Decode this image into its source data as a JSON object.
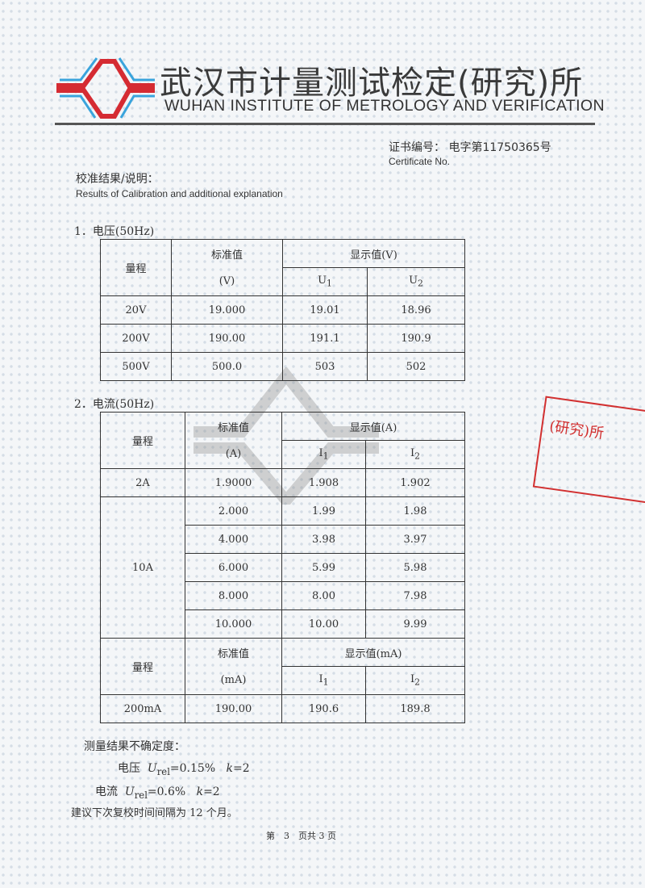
{
  "header": {
    "title_cn": "武汉市计量测试检定(研究)所",
    "title_en": "WUHAN INSTITUTE OF METROLOGY AND VERIFICATION",
    "logo_colors": {
      "red": "#d52b32",
      "blue": "#3aa4dc"
    }
  },
  "certificate": {
    "label_cn": "证书编号：",
    "number": "电字第11750365号",
    "label_en": "Certificate No."
  },
  "results": {
    "heading_cn": "校准结果/说明：",
    "heading_en": "Results of Calibration and additional explanation"
  },
  "voltage": {
    "title": "1．电压(50Hz)",
    "h_range": "量程",
    "h_std": "标准值",
    "h_std_unit": "(V)",
    "h_disp": "显示值(V)",
    "h_u1": "U",
    "h_u1_sub": "1",
    "h_u2": "U",
    "h_u2_sub": "2",
    "rows": [
      [
        "20V",
        "19.000",
        "19.01",
        "18.96"
      ],
      [
        "200V",
        "190.00",
        "191.1",
        "190.9"
      ],
      [
        "500V",
        "500.0",
        "503",
        "502"
      ]
    ]
  },
  "current": {
    "title": "2．电流(50Hz)",
    "h_range": "量程",
    "h_std": "标准值",
    "h_std_unit": "(A)",
    "h_disp": "显示值(A)",
    "h_i": "I",
    "s1": "1",
    "s2": "2",
    "row_2a": [
      "2A",
      "1.9000",
      "1.908",
      "1.902"
    ],
    "range_10a": "10A",
    "rows_10a": [
      [
        "2.000",
        "1.99",
        "1.98"
      ],
      [
        "4.000",
        "3.98",
        "3.97"
      ],
      [
        "6.000",
        "5.99",
        "5.98"
      ],
      [
        "8.000",
        "8.00",
        "7.98"
      ],
      [
        "10.000",
        "10.00",
        "9.99"
      ]
    ],
    "h_std_unit_ma": "(mA)",
    "h_disp_ma": "显示值(mA)",
    "row_ma": [
      "200mA",
      "190.00",
      "190.6",
      "189.8"
    ]
  },
  "uncertainty": {
    "heading": "测量结果不确定度：",
    "v_label": "电压",
    "v_value": "=0.15%",
    "i_label": "电流",
    "i_value": "=0.6%",
    "u": "U",
    "rel": "rel",
    "k": "k",
    "k_value": "=2"
  },
  "recommendation": "建议下次复校时间间隔为 12 个月。",
  "page": "第　3　页共 3 页",
  "stamp": "(研究)所"
}
